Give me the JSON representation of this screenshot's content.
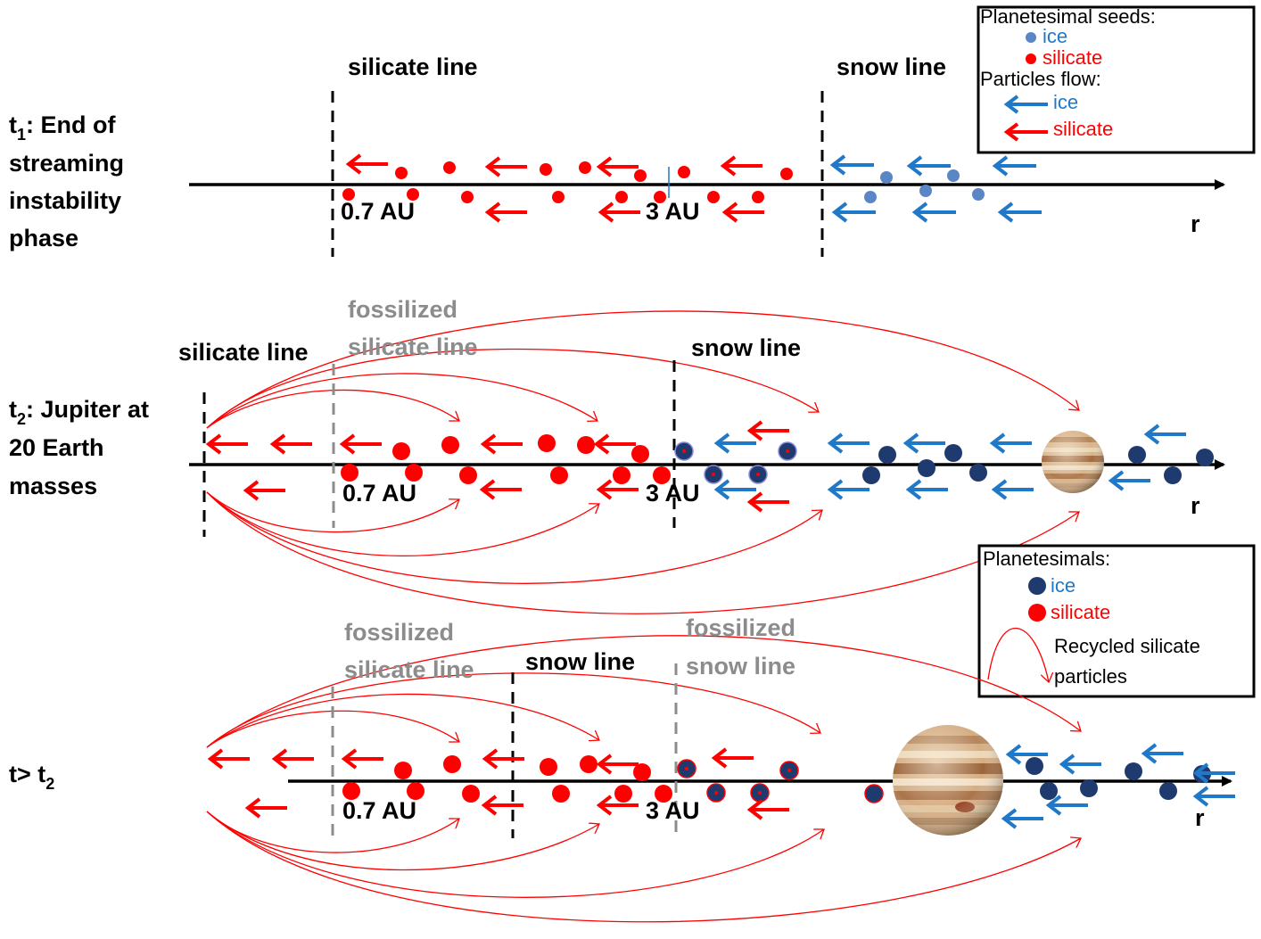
{
  "colors": {
    "silicate": "#ff0000",
    "ice_seed": "#5b86c5",
    "ice_planetesimal": "#1f3a6e",
    "ice_arrow": "#1f78c8",
    "fossil_gray": "#8c8c8c"
  },
  "panel1": {
    "stage_lines": [
      "t",
      "1",
      ": End of",
      "streaming",
      "instability",
      "phase"
    ],
    "silicate_line": "silicate line",
    "snow_line": "snow line",
    "tick_07": "0.7 AU",
    "tick_3": "3 AU",
    "axis_label": "r"
  },
  "panel2": {
    "stage_lines": [
      "t",
      "2",
      ": Jupiter at",
      "20 Earth",
      "masses"
    ],
    "silicate_line": "silicate line",
    "fossil_silicate_1": "fossilized",
    "fossil_silicate_2": "silicate line",
    "snow_line": "snow line",
    "tick_07": "0.7 AU",
    "tick_3": "3 AU",
    "axis_label": "r"
  },
  "panel3": {
    "stage_t": "t> t",
    "stage_sub": "2",
    "fossil_silicate_1": "fossilized",
    "fossil_silicate_2": "silicate line",
    "snow_line": "snow line",
    "fossil_snow_1": "fossilized",
    "fossil_snow_2": "snow line",
    "tick_07": "0.7 AU",
    "tick_3": "3 AU",
    "axis_label": "r"
  },
  "legend1": {
    "title": "Planetesimal seeds:",
    "ice": "ice",
    "silicate": "silicate",
    "flow_title": "Particles flow:",
    "flow_ice": "ice",
    "flow_silicate": "silicate"
  },
  "legend2": {
    "title": "Planetesimals:",
    "ice": "ice",
    "silicate": "silicate",
    "recycled_1": "Recycled silicate",
    "recycled_2": "particles"
  }
}
